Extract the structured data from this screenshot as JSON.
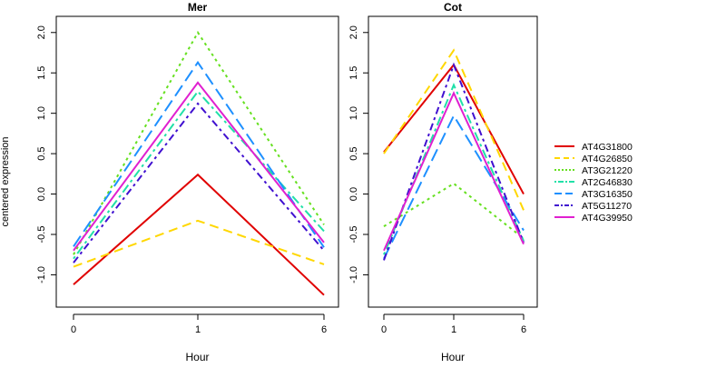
{
  "figure": {
    "ylabel": "centered expression"
  },
  "chart_data": [
    {
      "type": "line",
      "title": "Mer",
      "xlabel": "Hour",
      "ylabel": "centered expression",
      "x": [
        "0",
        "1",
        "6"
      ],
      "x_ticks": [
        "0",
        "1",
        "6"
      ],
      "ylim": [
        -1.4,
        2.2
      ],
      "y_ticks": [
        "-1.0",
        "-0.5",
        "0.0",
        "0.5",
        "1.0",
        "1.5",
        "2.0"
      ],
      "grid": false,
      "series": [
        {
          "name": "AT4G31800",
          "values": [
            -1.12,
            0.24,
            -1.25
          ]
        },
        {
          "name": "AT4G26850",
          "values": [
            -0.9,
            -0.33,
            -0.87
          ]
        },
        {
          "name": "AT3G21220",
          "values": [
            -0.75,
            2.0,
            -0.38
          ]
        },
        {
          "name": "AT2G46830",
          "values": [
            -0.8,
            1.27,
            -0.46
          ]
        },
        {
          "name": "AT3G16350",
          "values": [
            -0.65,
            1.63,
            -0.66
          ]
        },
        {
          "name": "AT5G11270",
          "values": [
            -0.85,
            1.12,
            -0.7
          ]
        },
        {
          "name": "AT4G39950",
          "values": [
            -0.7,
            1.38,
            -0.6
          ]
        }
      ]
    },
    {
      "type": "line",
      "title": "Cot",
      "xlabel": "Hour",
      "x": [
        "0",
        "1",
        "6"
      ],
      "x_ticks": [
        "0",
        "1",
        "6"
      ],
      "ylim": [
        -1.4,
        2.2
      ],
      "y_ticks": [
        "-1.0",
        "-0.5",
        "0.0",
        "0.5",
        "1.0",
        "1.5",
        "2.0"
      ],
      "grid": false,
      "series": [
        {
          "name": "AT4G31800",
          "values": [
            0.52,
            1.6,
            0.0
          ]
        },
        {
          "name": "AT4G26850",
          "values": [
            0.5,
            1.78,
            -0.2
          ]
        },
        {
          "name": "AT3G21220",
          "values": [
            -0.4,
            0.13,
            -0.55
          ]
        },
        {
          "name": "AT2G46830",
          "values": [
            -0.75,
            1.35,
            -0.58
          ]
        },
        {
          "name": "AT3G16350",
          "values": [
            -0.8,
            0.97,
            -0.45
          ]
        },
        {
          "name": "AT5G11270",
          "values": [
            -0.82,
            1.6,
            -0.6
          ]
        },
        {
          "name": "AT4G39950",
          "values": [
            -0.7,
            1.25,
            -0.62
          ]
        }
      ]
    }
  ],
  "legend": {
    "placement": "right",
    "entries": [
      {
        "label": "AT4G31800",
        "color": "#e00000",
        "dash": "solid"
      },
      {
        "label": "AT4G26850",
        "color": "#ffd700",
        "dash": "dashed"
      },
      {
        "label": "AT3G21220",
        "color": "#66e020",
        "dash": "dotted"
      },
      {
        "label": "AT2G46830",
        "color": "#20e0a8",
        "dash": "dotdash"
      },
      {
        "label": "AT3G16350",
        "color": "#1e90ff",
        "dash": "longdash"
      },
      {
        "label": "AT5G11270",
        "color": "#4010d0",
        "dash": "twodash"
      },
      {
        "label": "AT4G39950",
        "color": "#e020d0",
        "dash": "solid"
      }
    ]
  }
}
